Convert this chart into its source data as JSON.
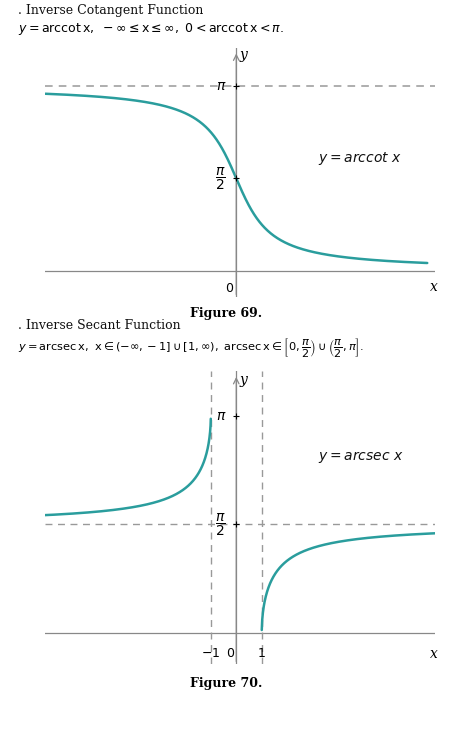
{
  "fig_width": 4.53,
  "fig_height": 7.34,
  "bg_color": "#ffffff",
  "curve_color": "#2a9d9d",
  "dashed_color": "#999999",
  "axis_color": "#888888",
  "text_color": "#000000",
  "fig69_caption": "Figure 69.",
  "fig70_caption": "Figure 70.",
  "top_title": ". Inverse Cotangent Function",
  "bottom_title": ". Inverse Secant Function"
}
